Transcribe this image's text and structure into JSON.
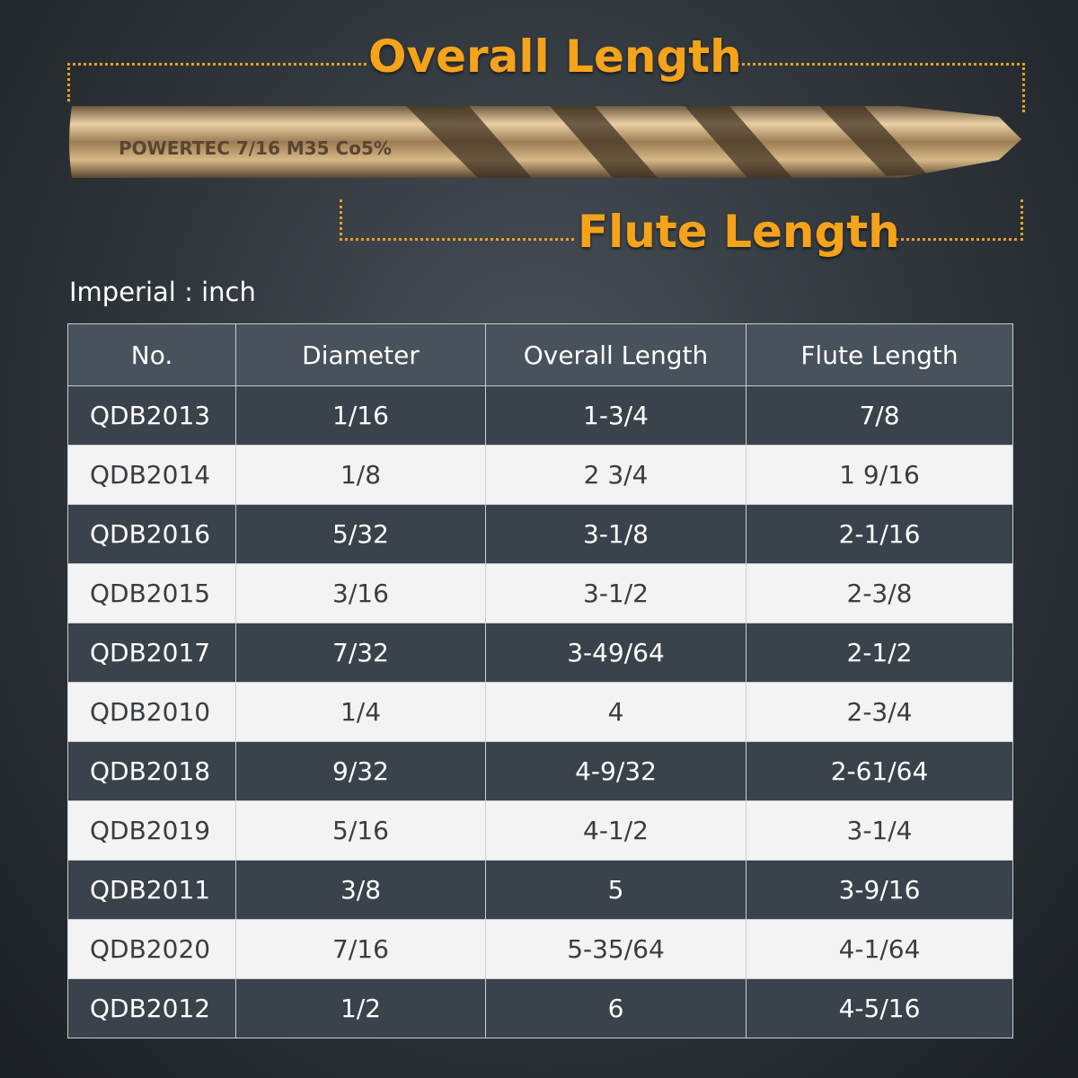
{
  "header": {
    "overall_length": "Overall Length",
    "flute_length": "Flute Length"
  },
  "drill_marking": "POWERTEC 7/16 M35 Co5%",
  "colors": {
    "accent": "#f5a31a",
    "dark_row": "#3a434b",
    "light_row": "#f3f3f3",
    "header": "#47525c"
  },
  "unit_label": "Imperial : inch",
  "table": {
    "columns": [
      "No.",
      "Diameter",
      "Overall Length",
      "Flute Length"
    ],
    "rows": [
      [
        "QDB2013",
        "1/16",
        "1-3/4",
        "7/8"
      ],
      [
        "QDB2014",
        "1/8",
        "2 3/4",
        "1 9/16"
      ],
      [
        "QDB2016",
        "5/32",
        "3-1/8",
        "2-1/16"
      ],
      [
        "QDB2015",
        "3/16",
        "3-1/2",
        "2-3/8"
      ],
      [
        "QDB2017",
        "7/32",
        "3-49/64",
        "2-1/2"
      ],
      [
        "QDB2010",
        "1/4",
        "4",
        "2-3/4"
      ],
      [
        "QDB2018",
        "9/32",
        "4-9/32",
        "2-61/64"
      ],
      [
        "QDB2019",
        "5/16",
        "4-1/2",
        "3-1/4"
      ],
      [
        "QDB2011",
        "3/8",
        "5",
        "3-9/16"
      ],
      [
        "QDB2020",
        "7/16",
        "5-35/64",
        "4-1/64"
      ],
      [
        "QDB2012",
        "1/2",
        "6",
        "4-5/16"
      ]
    ]
  }
}
